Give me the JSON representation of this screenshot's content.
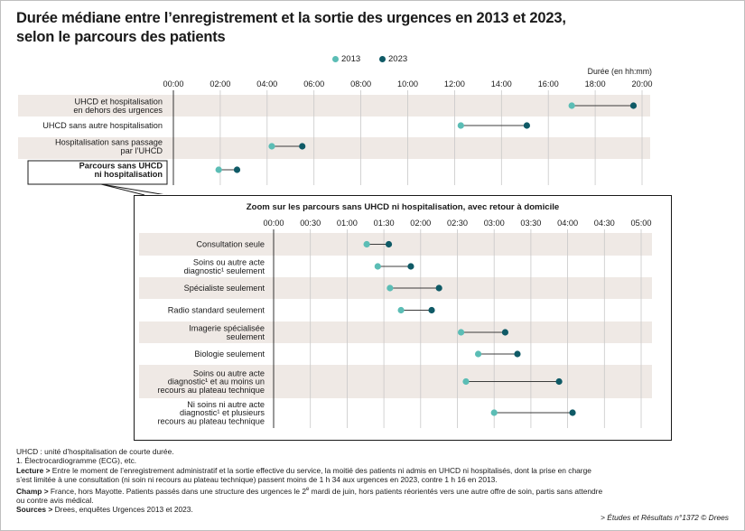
{
  "title": {
    "line1": "Durée médiane entre l’enregistrement et la sortie des urgences en 2013 et 2023,",
    "line2": "selon le parcours des patients"
  },
  "colors": {
    "c2013": "#5bbdb5",
    "c2023": "#0f5a66",
    "band": "#efe9e5",
    "grid": "#c8c8c8",
    "line": "#3c3c3c"
  },
  "legend": {
    "s2013": "2013",
    "s2023": "2023"
  },
  "chart_data": [
    {
      "type": "dumbbell",
      "title": "",
      "xlabel": "Durée (en hh:mm)",
      "xlim": [
        0,
        1200
      ],
      "x_unit": "minutes",
      "ticks": [
        "00:00",
        "02:00",
        "04:00",
        "06:00",
        "08:00",
        "10:00",
        "12:00",
        "14:00",
        "16:00",
        "18:00",
        "20:00"
      ],
      "tick_values": [
        0,
        120,
        240,
        360,
        480,
        600,
        720,
        840,
        960,
        1080,
        1200
      ],
      "categories": [
        {
          "lines": [
            "UHCD et hospitalisation",
            "en dehors des urgences"
          ],
          "band": true,
          "bold": false
        },
        {
          "lines": [
            "UHCD sans autre hospitalisation"
          ],
          "band": false,
          "bold": false
        },
        {
          "lines": [
            "Hospitalisation sans passage",
            "par l’UHCD"
          ],
          "band": true,
          "bold": false
        },
        {
          "lines": [
            "Parcours sans UHCD",
            "ni hospitalisation"
          ],
          "band": false,
          "bold": true
        }
      ],
      "series": [
        {
          "name": "2013",
          "values": [
            1020,
            736,
            252,
            116
          ]
        },
        {
          "name": "2023",
          "values": [
            1178,
            905,
            330,
            163
          ]
        }
      ]
    },
    {
      "type": "dumbbell",
      "title": "Zoom sur les parcours sans UHCD ni hospitalisation, avec retour à domicile",
      "xlim": [
        0,
        300
      ],
      "x_unit": "minutes",
      "ticks": [
        "00:00",
        "00:30",
        "01:00",
        "01:30",
        "02:00",
        "02:30",
        "03:00",
        "03:30",
        "04:00",
        "04:30",
        "05:00"
      ],
      "tick_values": [
        0,
        30,
        60,
        90,
        120,
        150,
        180,
        210,
        240,
        270,
        300
      ],
      "categories": [
        {
          "lines": [
            "Consultation seule"
          ],
          "band": true
        },
        {
          "lines": [
            "Soins ou autre acte",
            "diagnostic¹ seulement"
          ],
          "band": false
        },
        {
          "lines": [
            "Spécialiste seulement"
          ],
          "band": true
        },
        {
          "lines": [
            "Radio standard seulement"
          ],
          "band": false
        },
        {
          "lines": [
            "Imagerie spécialisée",
            "seulement"
          ],
          "band": true
        },
        {
          "lines": [
            "Biologie seulement"
          ],
          "band": false
        },
        {
          "lines": [
            "Soins ou autre acte",
            "diagnostic¹ et au moins un",
            "recours au plateau technique"
          ],
          "band": true
        },
        {
          "lines": [
            "Ni soins ni autre acte",
            "diagnostic¹ et plusieurs",
            "recours au plateau technique"
          ],
          "band": false
        }
      ],
      "series": [
        {
          "name": "2013",
          "values": [
            76,
            85,
            95,
            104,
            153,
            167,
            157,
            180
          ]
        },
        {
          "name": "2023",
          "values": [
            94,
            112,
            135,
            129,
            189,
            199,
            233,
            244
          ]
        }
      ]
    }
  ],
  "notes": {
    "uhcd": "UHCD : unité d’hospitalisation de courte durée.",
    "fn1": "1. Électrocardiogramme (ECG), etc.",
    "lecture_label": "Lecture >",
    "lecture_1": " Entre le moment de l’enregistrement administratif et la sortie effective du service, la moitié des patients ni admis en UHCD ni hospitalisés, dont la prise en charge",
    "lecture_2": "s’est limitée à une consultation (ni soin ni recours au plateau technique) passent moins de 1 h 34 aux urgences en 2023, contre 1 h 16 en 2013.",
    "champ_label": "Champ >",
    "champ_1a": " France, hors Mayotte. Patients passés dans une structure des urgences le 2",
    "champ_sup": "e",
    "champ_1b": " mardi de juin, hors patients réorientés vers une autre offre de soin, partis sans attendre",
    "champ_2": "ou contre avis médical.",
    "sources_label": "Sources >",
    "sources": " Drees, enquêtes Urgences 2013 et 2023.",
    "credit": "> Études et Résultats n°1372 © Drees"
  }
}
